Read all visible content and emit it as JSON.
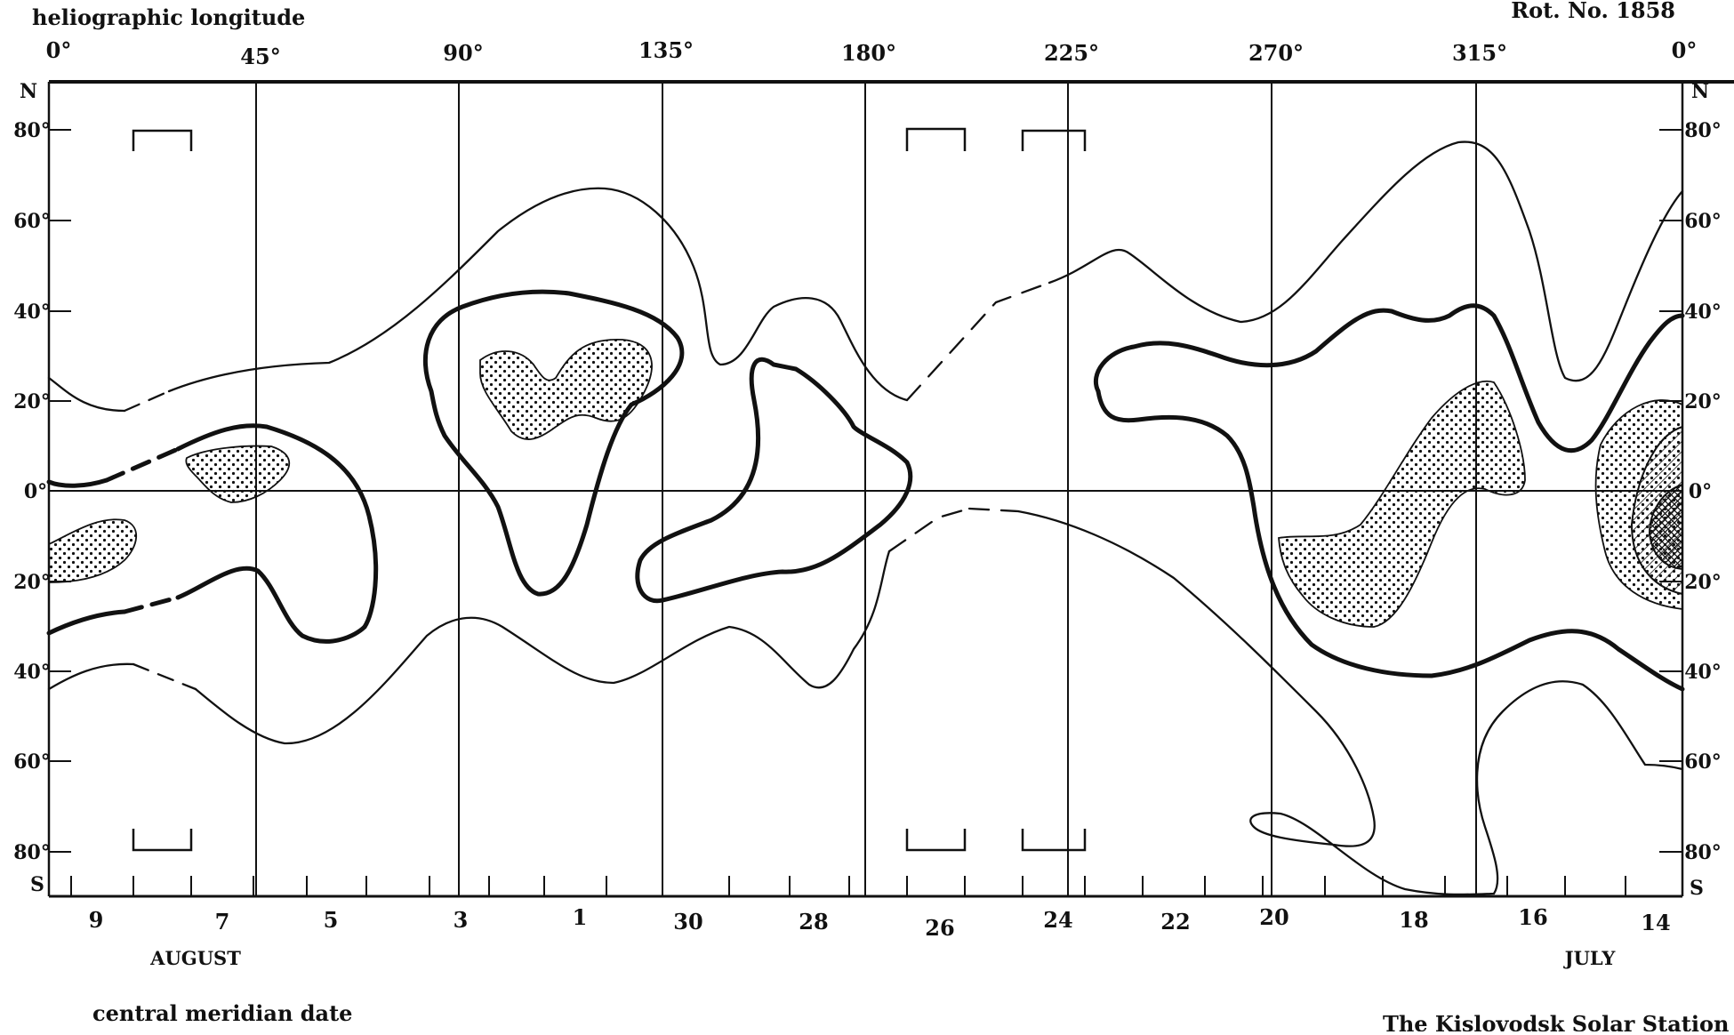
{
  "header": {
    "axis_title_top": "heliographic longitude",
    "rotation": "Rot. No. 1858"
  },
  "footer": {
    "axis_title_bottom": "central meridian date",
    "credit": "The Kislovodsk Solar Station"
  },
  "longitude_ticks": [
    "0°",
    "45°",
    "90°",
    "135°",
    "180°",
    "225°",
    "270°",
    "315°",
    "0°"
  ],
  "latitude_axis": {
    "north_marker": "N",
    "south_marker": "S",
    "labels": [
      "80°",
      "60°",
      "40°",
      "20°",
      "0°",
      "20°",
      "40°",
      "60°",
      "80°"
    ]
  },
  "date_ticks": [
    "9",
    "7",
    "5",
    "3",
    "1",
    "30",
    "28",
    "26",
    "24",
    "22",
    "20",
    "18",
    "16",
    "14"
  ],
  "months": [
    "AUGUST",
    "JULY"
  ],
  "style": {
    "ink": "#111111",
    "paper": "#ffffff"
  }
}
